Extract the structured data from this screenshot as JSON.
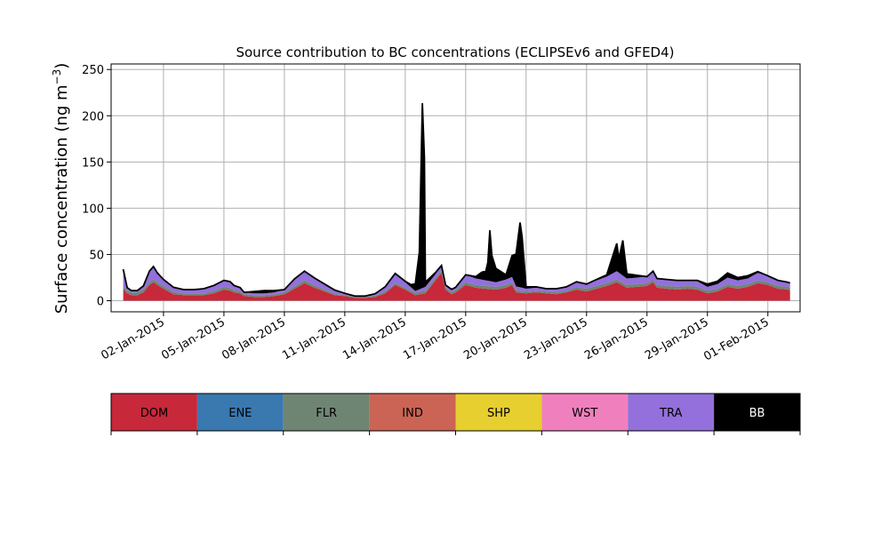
{
  "chart_data": {
    "type": "area",
    "title": "Source contribution to BC concentrations (ECLIPSEv6 and GFED4)",
    "ylabel_main": "Surface concentration (ng m",
    "ylabel_exp": "−3",
    "ylabel_close": ")",
    "ylim": [
      -12,
      256
    ],
    "xlim": [
      -1.6,
      32.6
    ],
    "yticks": [
      0,
      50,
      100,
      150,
      200,
      250
    ],
    "xticks": [
      {
        "x": 1,
        "label": "02-Jan-2015"
      },
      {
        "x": 4,
        "label": "05-Jan-2015"
      },
      {
        "x": 7,
        "label": "08-Jan-2015"
      },
      {
        "x": 10,
        "label": "11-Jan-2015"
      },
      {
        "x": 13,
        "label": "14-Jan-2015"
      },
      {
        "x": 16,
        "label": "17-Jan-2015"
      },
      {
        "x": 19,
        "label": "20-Jan-2015"
      },
      {
        "x": 22,
        "label": "23-Jan-2015"
      },
      {
        "x": 25,
        "label": "26-Jan-2015"
      },
      {
        "x": 28,
        "label": "29-Jan-2015"
      },
      {
        "x": 31,
        "label": "01-Feb-2015"
      }
    ],
    "grid": true,
    "legend_placement": "bottom",
    "legend": [
      {
        "name": "DOM",
        "color": "#c7283a",
        "text_color": "#000000"
      },
      {
        "name": "ENE",
        "color": "#3a78b0",
        "text_color": "#000000"
      },
      {
        "name": "FLR",
        "color": "#6f8573",
        "text_color": "#000000"
      },
      {
        "name": "IND",
        "color": "#cb6455",
        "text_color": "#000000"
      },
      {
        "name": "SHP",
        "color": "#e6cf2e",
        "text_color": "#000000"
      },
      {
        "name": "WST",
        "color": "#f080bd",
        "text_color": "#000000"
      },
      {
        "name": "TRA",
        "color": "#9370db",
        "text_color": "#000000"
      },
      {
        "name": "BB",
        "color": "#000000",
        "text_color": "#ffffff"
      }
    ],
    "series": [
      {
        "name": "DOM",
        "points": [
          [
            -1,
            13
          ],
          [
            -0.8,
            8
          ],
          [
            -0.6,
            6
          ],
          [
            -0.3,
            6
          ],
          [
            0,
            9
          ],
          [
            0.3,
            17
          ],
          [
            0.5,
            20
          ],
          [
            0.7,
            17
          ],
          [
            1,
            13
          ],
          [
            1.5,
            7
          ],
          [
            2,
            6
          ],
          [
            2.5,
            6
          ],
          [
            3,
            6
          ],
          [
            3.5,
            8
          ],
          [
            4,
            12
          ],
          [
            4.3,
            11
          ],
          [
            4.5,
            9
          ],
          [
            4.8,
            8
          ],
          [
            5,
            5
          ],
          [
            5.5,
            4
          ],
          [
            6,
            4
          ],
          [
            6.5,
            5
          ],
          [
            7,
            7
          ],
          [
            7.5,
            13
          ],
          [
            8,
            19
          ],
          [
            8.5,
            14
          ],
          [
            9,
            10
          ],
          [
            9.5,
            6
          ],
          [
            10,
            5
          ],
          [
            10.5,
            3
          ],
          [
            11,
            3
          ],
          [
            11.5,
            4
          ],
          [
            12,
            8
          ],
          [
            12.5,
            17
          ],
          [
            13,
            12
          ],
          [
            13.5,
            6
          ],
          [
            14,
            8
          ],
          [
            14.5,
            22
          ],
          [
            14.8,
            30
          ],
          [
            15,
            12
          ],
          [
            15.3,
            7
          ],
          [
            15.5,
            9
          ],
          [
            16,
            17
          ],
          [
            16.5,
            14
          ],
          [
            17,
            13
          ],
          [
            17.5,
            12
          ],
          [
            18,
            14
          ],
          [
            18.3,
            17
          ],
          [
            18.5,
            9
          ],
          [
            19,
            8
          ],
          [
            19.5,
            9
          ],
          [
            20,
            8
          ],
          [
            20.5,
            7
          ],
          [
            21,
            9
          ],
          [
            21.5,
            12
          ],
          [
            22,
            10
          ],
          [
            22.5,
            13
          ],
          [
            23,
            16
          ],
          [
            23.5,
            20
          ],
          [
            24,
            14
          ],
          [
            24.5,
            15
          ],
          [
            25,
            16
          ],
          [
            25.3,
            20
          ],
          [
            25.5,
            14
          ],
          [
            26,
            13
          ],
          [
            26.5,
            12
          ],
          [
            27,
            13
          ],
          [
            27.5,
            12
          ],
          [
            28,
            8
          ],
          [
            28.5,
            10
          ],
          [
            29,
            15
          ],
          [
            29.5,
            13
          ],
          [
            30,
            15
          ],
          [
            30.5,
            19
          ],
          [
            31,
            17
          ],
          [
            31.5,
            13
          ],
          [
            32,
            12
          ],
          [
            32.1,
            11
          ]
        ]
      },
      {
        "name": "FLR",
        "points": [
          [
            -1,
            3
          ],
          [
            0,
            3
          ],
          [
            1,
            3
          ],
          [
            2,
            2
          ],
          [
            3,
            2
          ],
          [
            4,
            3
          ],
          [
            5,
            2
          ],
          [
            6,
            2
          ],
          [
            7,
            2
          ],
          [
            8,
            3
          ],
          [
            9,
            2
          ],
          [
            10,
            1
          ],
          [
            11,
            1
          ],
          [
            12,
            2
          ],
          [
            13,
            2
          ],
          [
            14,
            3
          ],
          [
            15,
            2
          ],
          [
            16,
            3
          ],
          [
            17,
            3
          ],
          [
            18,
            3
          ],
          [
            19,
            2
          ],
          [
            20,
            2
          ],
          [
            21,
            2
          ],
          [
            22,
            3
          ],
          [
            23,
            3
          ],
          [
            24,
            3
          ],
          [
            25,
            3
          ],
          [
            26,
            3
          ],
          [
            27,
            3
          ],
          [
            28,
            3
          ],
          [
            29,
            3
          ],
          [
            30,
            3
          ],
          [
            31,
            3
          ],
          [
            32,
            3
          ],
          [
            32.1,
            3
          ]
        ]
      },
      {
        "name": "TRA",
        "points": [
          [
            -1,
            18
          ],
          [
            -0.8,
            3
          ],
          [
            -0.6,
            2
          ],
          [
            -0.3,
            2
          ],
          [
            0,
            4
          ],
          [
            0.3,
            12
          ],
          [
            0.5,
            14
          ],
          [
            0.7,
            10
          ],
          [
            1,
            7
          ],
          [
            1.5,
            5
          ],
          [
            2,
            4
          ],
          [
            2.5,
            4
          ],
          [
            3,
            5
          ],
          [
            3.5,
            6
          ],
          [
            4,
            7
          ],
          [
            4.3,
            7
          ],
          [
            4.5,
            5
          ],
          [
            4.8,
            4
          ],
          [
            5,
            2
          ],
          [
            5.5,
            2
          ],
          [
            6,
            2
          ],
          [
            6.5,
            2
          ],
          [
            7,
            3
          ],
          [
            7.5,
            8
          ],
          [
            8,
            10
          ],
          [
            8.5,
            8
          ],
          [
            9,
            6
          ],
          [
            9.5,
            4
          ],
          [
            10,
            2
          ],
          [
            10.5,
            1
          ],
          [
            11,
            1
          ],
          [
            11.5,
            2
          ],
          [
            12,
            5
          ],
          [
            12.5,
            10
          ],
          [
            13,
            6
          ],
          [
            13.5,
            2
          ],
          [
            14,
            4
          ],
          [
            14.5,
            4
          ],
          [
            14.8,
            5
          ],
          [
            15,
            3
          ],
          [
            15.3,
            3
          ],
          [
            15.5,
            3
          ],
          [
            16,
            8
          ],
          [
            16.5,
            7
          ],
          [
            17,
            6
          ],
          [
            17.5,
            5
          ],
          [
            18,
            6
          ],
          [
            18.3,
            6
          ],
          [
            18.5,
            4
          ],
          [
            19,
            3
          ],
          [
            19.5,
            3
          ],
          [
            20,
            3
          ],
          [
            20.5,
            4
          ],
          [
            21,
            4
          ],
          [
            21.5,
            6
          ],
          [
            22,
            5
          ],
          [
            22.5,
            6
          ],
          [
            23,
            7
          ],
          [
            23.5,
            9
          ],
          [
            24,
            7
          ],
          [
            24.5,
            7
          ],
          [
            25,
            7
          ],
          [
            25.3,
            9
          ],
          [
            25.5,
            7
          ],
          [
            26,
            7
          ],
          [
            26.5,
            7
          ],
          [
            27,
            6
          ],
          [
            27.5,
            6
          ],
          [
            28,
            4
          ],
          [
            28.5,
            5
          ],
          [
            29,
            7
          ],
          [
            29.5,
            6
          ],
          [
            30,
            6
          ],
          [
            30.5,
            8
          ],
          [
            31,
            7
          ],
          [
            31.5,
            6
          ],
          [
            32,
            5
          ],
          [
            32.1,
            5
          ]
        ]
      },
      {
        "name": "BB",
        "points": [
          [
            -1,
            0
          ],
          [
            0,
            0
          ],
          [
            1,
            0
          ],
          [
            2,
            0
          ],
          [
            3,
            0
          ],
          [
            4,
            0
          ],
          [
            5,
            0
          ],
          [
            5.5,
            2
          ],
          [
            6,
            3
          ],
          [
            6.5,
            2
          ],
          [
            7,
            0
          ],
          [
            8,
            0
          ],
          [
            9,
            0
          ],
          [
            10,
            0
          ],
          [
            11,
            0
          ],
          [
            12,
            0
          ],
          [
            13,
            1
          ],
          [
            13.3,
            3
          ],
          [
            13.5,
            8
          ],
          [
            13.7,
            40
          ],
          [
            13.85,
            200
          ],
          [
            13.95,
            140
          ],
          [
            14,
            5
          ],
          [
            14.5,
            2
          ],
          [
            15,
            0
          ],
          [
            16,
            0
          ],
          [
            16.5,
            2
          ],
          [
            16.8,
            8
          ],
          [
            17,
            10
          ],
          [
            17.1,
            20
          ],
          [
            17.2,
            55
          ],
          [
            17.3,
            28
          ],
          [
            17.5,
            15
          ],
          [
            18,
            5
          ],
          [
            18.5,
            35
          ],
          [
            18.7,
            70
          ],
          [
            18.8,
            55
          ],
          [
            19,
            2
          ],
          [
            20,
            0
          ],
          [
            21,
            0
          ],
          [
            22,
            0
          ],
          [
            23,
            2
          ],
          [
            23.5,
            30
          ],
          [
            23.6,
            15
          ],
          [
            23.8,
            38
          ],
          [
            24,
            5
          ],
          [
            25,
            0
          ],
          [
            26,
            0
          ],
          [
            27,
            0
          ],
          [
            27.5,
            1
          ],
          [
            28,
            3
          ],
          [
            28.5,
            3
          ],
          [
            29,
            5
          ],
          [
            29.5,
            3
          ],
          [
            30,
            3
          ],
          [
            31,
            0
          ],
          [
            32,
            0
          ],
          [
            32.1,
            0
          ]
        ]
      }
    ]
  }
}
